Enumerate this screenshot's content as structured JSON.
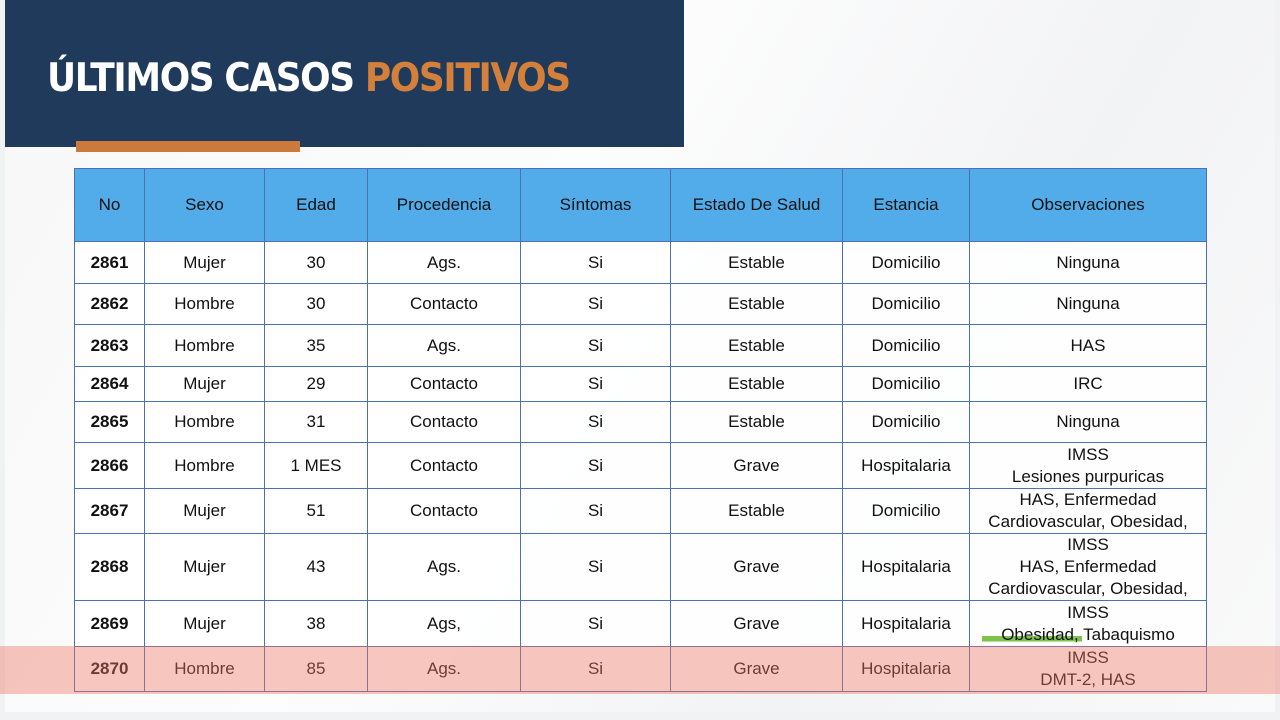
{
  "title": {
    "main": "ÚLTIMOS CASOS",
    "accent": "POSITIVOS"
  },
  "colors": {
    "banner": "#1f3a5a",
    "accent": "#d4803a",
    "header": "#52ace9",
    "highlight_row": "#ec7864"
  },
  "table": {
    "headers": [
      "No",
      "Sexo",
      "Edad",
      "Procedencia",
      "Síntomas",
      "Estado De Salud",
      "Estancia",
      "Observaciones"
    ],
    "rows": [
      {
        "no": "2861",
        "sexo": "Mujer",
        "edad": "30",
        "procedencia": "Ags.",
        "sintomas": "Si",
        "estado": "Estable",
        "estancia": "Domicilio",
        "obs": [
          "Ninguna"
        ]
      },
      {
        "no": "2862",
        "sexo": "Hombre",
        "edad": "30",
        "procedencia": "Contacto",
        "sintomas": "Si",
        "estado": "Estable",
        "estancia": "Domicilio",
        "obs": [
          "Ninguna"
        ]
      },
      {
        "no": "2863",
        "sexo": "Hombre",
        "edad": "35",
        "procedencia": "Ags.",
        "sintomas": "Si",
        "estado": "Estable",
        "estancia": "Domicilio",
        "obs": [
          "HAS"
        ]
      },
      {
        "no": "2864",
        "sexo": "Mujer",
        "edad": "29",
        "procedencia": "Contacto",
        "sintomas": "Si",
        "estado": "Estable",
        "estancia": "Domicilio",
        "obs": [
          "IRC"
        ]
      },
      {
        "no": "2865",
        "sexo": "Hombre",
        "edad": "31",
        "procedencia": "Contacto",
        "sintomas": "Si",
        "estado": "Estable",
        "estancia": "Domicilio",
        "obs": [
          "Ninguna"
        ]
      },
      {
        "no": "2866",
        "sexo": "Hombre",
        "edad": "1 MES",
        "procedencia": "Contacto",
        "sintomas": "Si",
        "estado": "Grave",
        "estancia": "Hospitalaria",
        "obs": [
          "IMSS",
          "Lesiones purpuricas"
        ]
      },
      {
        "no": "2867",
        "sexo": "Mujer",
        "edad": "51",
        "procedencia": "Contacto",
        "sintomas": "Si",
        "estado": "Estable",
        "estancia": "Domicilio",
        "obs": [
          "HAS, Enfermedad",
          "Cardiovascular, Obesidad,"
        ]
      },
      {
        "no": "2868",
        "sexo": "Mujer",
        "edad": "43",
        "procedencia": "Ags.",
        "sintomas": "Si",
        "estado": "Grave",
        "estancia": "Hospitalaria",
        "obs": [
          "IMSS",
          "HAS, Enfermedad",
          "Cardiovascular, Obesidad,"
        ]
      },
      {
        "no": "2869",
        "sexo": "Mujer",
        "edad": "38",
        "procedencia": "Ags,",
        "sintomas": "Si",
        "estado": "Grave",
        "estancia": "Hospitalaria",
        "obs": [
          "IMSS",
          "Obesidad, Tabaquismo"
        ]
      },
      {
        "no": "2870",
        "sexo": "Hombre",
        "edad": "85",
        "procedencia": "Ags.",
        "sintomas": "Si",
        "estado": "Grave",
        "estancia": "Hospitalaria",
        "obs": [
          "IMSS",
          "DMT-2, HAS"
        ]
      }
    ]
  }
}
